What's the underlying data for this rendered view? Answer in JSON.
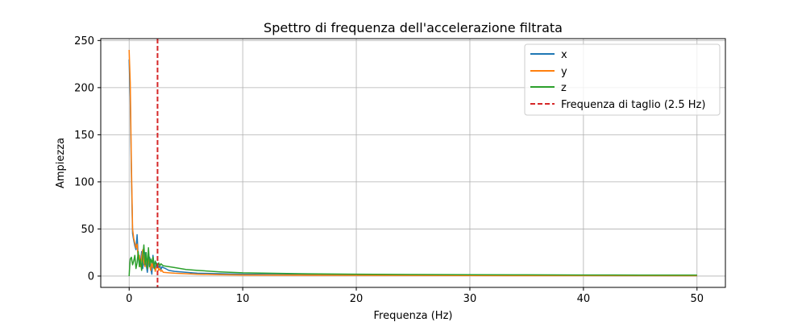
{
  "chart_data": {
    "type": "line",
    "title": "Spettro di frequenza dell'accelerazione filtrata",
    "xlabel": "Frequenza (Hz)",
    "ylabel": "Ampiezza",
    "xlim": [
      -2.5,
      52.5
    ],
    "ylim": [
      -12,
      252
    ],
    "xticks": [
      0,
      10,
      20,
      30,
      40,
      50
    ],
    "yticks": [
      0,
      50,
      100,
      150,
      200,
      250
    ],
    "grid": true,
    "legend_position": "top-right",
    "cutoff": {
      "label": "Frequenza di taglio (2.5 Hz)",
      "x": 2.5,
      "color": "#d62728",
      "style": "dashed"
    },
    "series": [
      {
        "name": "x",
        "color": "#1f77b4",
        "x": [
          0,
          0.1,
          0.2,
          0.3,
          0.4,
          0.5,
          0.6,
          0.7,
          0.8,
          0.9,
          1.0,
          1.1,
          1.2,
          1.3,
          1.4,
          1.5,
          1.6,
          1.7,
          1.8,
          1.9,
          2.0,
          2.1,
          2.2,
          2.3,
          2.4,
          2.5,
          2.6,
          2.7,
          2.8,
          2.9,
          3.0,
          3.2,
          3.5,
          4,
          5,
          6,
          8,
          10,
          15,
          20,
          25,
          30,
          35,
          40,
          45,
          50
        ],
        "y": [
          230,
          190,
          110,
          45,
          38,
          32,
          28,
          44,
          20,
          12,
          15,
          26,
          8,
          18,
          25,
          12,
          4,
          14,
          20,
          8,
          2,
          22,
          10,
          6,
          14,
          12,
          9,
          11,
          7,
          10,
          9,
          8,
          6,
          5,
          4,
          3,
          2.5,
          2,
          1.5,
          1.2,
          1,
          0.8,
          0.7,
          0.6,
          0.5,
          0.4
        ]
      },
      {
        "name": "y",
        "color": "#ff7f0e",
        "x": [
          0,
          0.1,
          0.2,
          0.3,
          0.4,
          0.5,
          0.6,
          0.7,
          0.8,
          0.9,
          1.0,
          1.1,
          1.2,
          1.3,
          1.4,
          1.5,
          1.6,
          1.7,
          1.8,
          1.9,
          2.0,
          2.1,
          2.2,
          2.3,
          2.4,
          2.5,
          2.6,
          2.7,
          2.8,
          2.9,
          3.0,
          3.5,
          4,
          5,
          6,
          8,
          10,
          15,
          20,
          30,
          40,
          50
        ],
        "y": [
          240,
          205,
          120,
          50,
          40,
          35,
          30,
          34,
          18,
          22,
          10,
          20,
          28,
          14,
          10,
          22,
          8,
          18,
          12,
          6,
          16,
          9,
          12,
          5,
          9,
          11,
          6,
          8,
          5,
          6,
          4,
          3.5,
          3,
          2.5,
          2,
          1.5,
          1.2,
          1,
          0.8,
          0.6,
          0.5,
          0.4
        ]
      },
      {
        "name": "z",
        "color": "#2ca02c",
        "x": [
          0,
          0.05,
          0.1,
          0.2,
          0.3,
          0.4,
          0.5,
          0.6,
          0.7,
          0.8,
          0.9,
          1.0,
          1.1,
          1.2,
          1.3,
          1.4,
          1.5,
          1.6,
          1.7,
          1.8,
          1.9,
          2.0,
          2.1,
          2.2,
          2.3,
          2.4,
          2.5,
          2.6,
          2.7,
          2.8,
          2.9,
          3.0,
          3.5,
          4,
          5,
          6,
          8,
          10,
          15,
          20,
          25,
          30,
          35,
          40,
          45,
          50
        ],
        "y": [
          0,
          10,
          18,
          20,
          12,
          16,
          22,
          8,
          14,
          26,
          10,
          18,
          6,
          20,
          33,
          12,
          25,
          8,
          30,
          10,
          18,
          14,
          20,
          8,
          16,
          12,
          10,
          14,
          11,
          13,
          12,
          11,
          10,
          9,
          7,
          6,
          4.5,
          3.5,
          2.5,
          2,
          1.7,
          1.5,
          1.3,
          1.2,
          1.1,
          1
        ]
      }
    ]
  }
}
